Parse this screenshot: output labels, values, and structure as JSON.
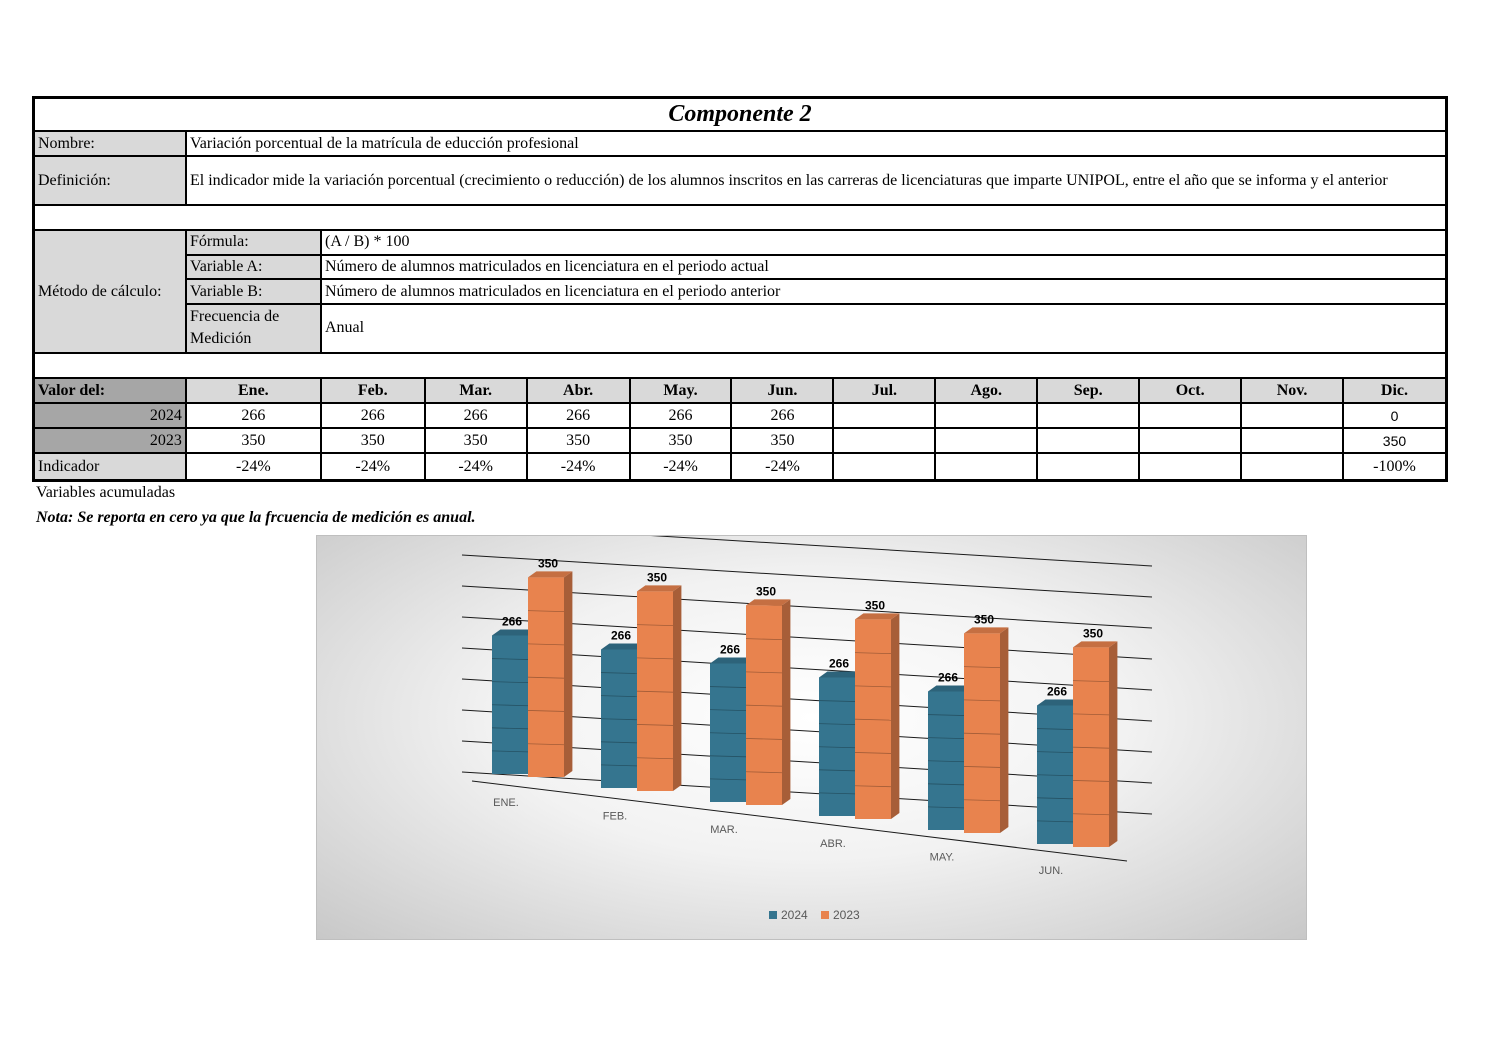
{
  "title": "Componente 2",
  "nombre_label": "Nombre:",
  "nombre_value": "Variación porcentual de la matrícula de educción profesional",
  "definicion_label": "Definición:",
  "definicion_value": "El indicador mide la variación porcentual (crecimiento o reducción) de los alumnos inscritos en las carreras de licenciaturas que imparte UNIPOL, entre el año que se informa y el anterior",
  "metodo_label": "Método de cálculo:",
  "metodo_rows": [
    {
      "label": "Fórmula:",
      "value": "(A / B) * 100"
    },
    {
      "label": "Variable A:",
      "value": "Número de alumnos matriculados en licenciatura en el periodo actual"
    },
    {
      "label": "Variable B:",
      "value": "Número de alumnos matriculados en licenciatura en el periodo anterior"
    },
    {
      "label": "Frecuencia de Medición",
      "value": "Anual"
    }
  ],
  "valor_label": "Valor del:",
  "months": [
    "Ene.",
    "Feb.",
    "Mar.",
    "Abr.",
    "May.",
    "Jun.",
    "Jul.",
    "Ago.",
    "Sep.",
    "Oct.",
    "Nov.",
    "Dic."
  ],
  "row_2024": {
    "label": "2024",
    "values": [
      "266",
      "266",
      "266",
      "266",
      "266",
      "266",
      "",
      "",
      "",
      "",
      "",
      "0"
    ]
  },
  "row_2023": {
    "label": "2023",
    "values": [
      "350",
      "350",
      "350",
      "350",
      "350",
      "350",
      "",
      "",
      "",
      "",
      "",
      "350"
    ]
  },
  "row_indicador": {
    "label": "Indicador",
    "values": [
      "-24%",
      "-24%",
      "-24%",
      "-24%",
      "-24%",
      "-24%",
      "",
      "",
      "",
      "",
      "",
      "-100%"
    ]
  },
  "note_acumuladas": "Variables acumuladas",
  "note_cero": "Nota: Se reporta en cero ya que la frcuencia de medición es anual.",
  "chart_data": {
    "type": "bar",
    "categories": [
      "ENE.",
      "FEB.",
      "MAR.",
      "ABR.",
      "MAY.",
      "JUN."
    ],
    "series": [
      {
        "name": "2024",
        "values": [
          266,
          266,
          266,
          266,
          266,
          266
        ],
        "color": "#35758f"
      },
      {
        "name": "2023",
        "values": [
          350,
          350,
          350,
          350,
          350,
          350
        ],
        "color": "#e8834e"
      }
    ],
    "ylim": [
      0,
      400
    ],
    "grid": true,
    "legend": "bottom"
  }
}
